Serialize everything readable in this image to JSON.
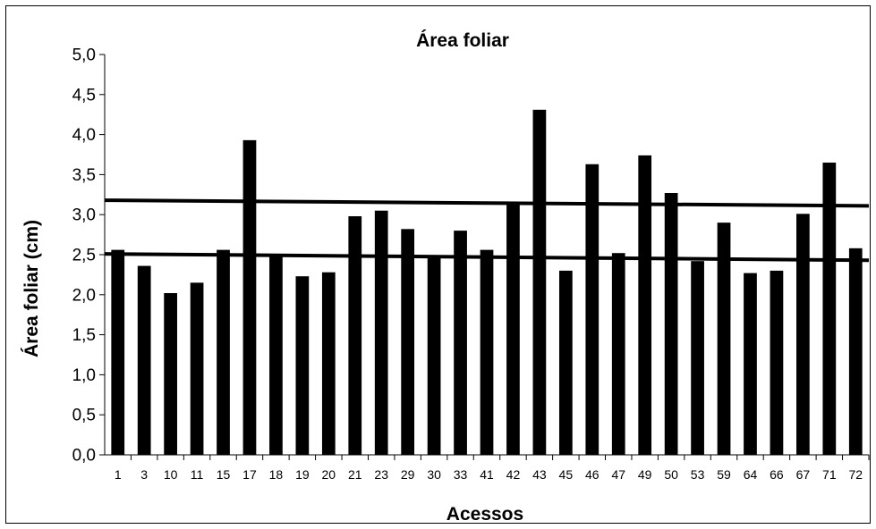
{
  "chart_data": {
    "type": "bar",
    "title": "Área foliar",
    "xlabel": "Acessos",
    "ylabel": "Área foliar (cm)",
    "ylim": [
      0,
      5.0
    ],
    "ytick_labels": [
      "0,0",
      "0,5",
      "1,0",
      "1,5",
      "2,0",
      "2,5",
      "3,0",
      "3,5",
      "4,0",
      "4,5",
      "5,0"
    ],
    "categories": [
      "1",
      "3",
      "10",
      "11",
      "15",
      "17",
      "18",
      "19",
      "20",
      "21",
      "23",
      "29",
      "30",
      "33",
      "41",
      "42",
      "43",
      "45",
      "46",
      "47",
      "49",
      "50",
      "53",
      "59",
      "64",
      "66",
      "67",
      "71",
      "72"
    ],
    "values": [
      2.56,
      2.36,
      2.02,
      2.15,
      2.56,
      3.93,
      2.48,
      2.23,
      2.28,
      2.98,
      3.05,
      2.82,
      2.48,
      2.8,
      2.56,
      3.14,
      4.31,
      2.3,
      3.63,
      2.52,
      3.74,
      3.27,
      2.42,
      2.9,
      2.27,
      2.3,
      3.01,
      3.65,
      2.58
    ],
    "bar_color": "#000000",
    "reference_lines": [
      {
        "y_start": 3.18,
        "y_end": 3.11
      },
      {
        "y_start": 2.51,
        "y_end": 2.43
      }
    ],
    "grid": false,
    "legend": "none"
  }
}
